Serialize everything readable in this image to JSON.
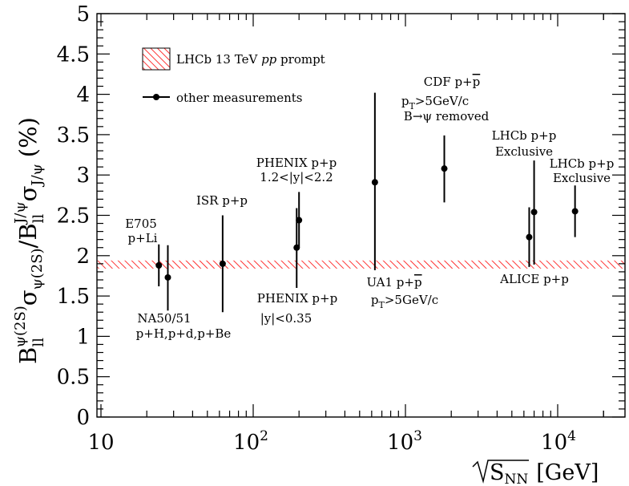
{
  "chart_data": {
    "type": "scatter",
    "title": "",
    "xlabel": "√S_NN [GeV]",
    "ylabel": "B_ll^ψ(2S) σ_ψ(2S) / B_ll^J/ψ σ_J/ψ (%)",
    "xscale": "log",
    "xlim": [
      10,
      27000
    ],
    "ylim": [
      0,
      5
    ],
    "y_ticks": [
      "0",
      "0.5",
      "1",
      "1.5",
      "2",
      "2.5",
      "3",
      "3.5",
      "4",
      "4.5",
      "5"
    ],
    "x_ticks": [
      "10",
      "10^2",
      "10^3",
      "10^4"
    ],
    "grid": false,
    "legend": {
      "placement": "top-left",
      "entries": [
        {
          "label": "LHCb 13 TeV pp prompt",
          "marker": "hatched-band"
        },
        {
          "label": "other measurements",
          "marker": "point-errorbar"
        }
      ]
    },
    "band": {
      "name": "LHCb 13 TeV pp prompt",
      "y_center": 1.89,
      "y_low": 1.84,
      "y_high": 1.94,
      "color": "#ff0000",
      "pattern": "diagonal-hatch"
    },
    "series": [
      {
        "name": "other measurements",
        "color": "#000000",
        "points": [
          {
            "x": 24,
            "y": 1.88,
            "err_low": 0.26,
            "err_high": 0.26
          },
          {
            "x": 27.5,
            "y": 1.73,
            "err_low": 0.41,
            "err_high": 0.4
          },
          {
            "x": 63,
            "y": 1.9,
            "err_low": 0.6,
            "err_high": 0.6
          },
          {
            "x": 193,
            "y": 2.1,
            "err_low": 0.5,
            "err_high": 0.49
          },
          {
            "x": 200,
            "y": 2.44,
            "err_low": 0.34,
            "err_high": 0.35
          },
          {
            "x": 630,
            "y": 2.91,
            "err_low": 1.09,
            "err_high": 1.11
          },
          {
            "x": 1800,
            "y": 3.08,
            "err_low": 0.42,
            "err_high": 0.41
          },
          {
            "x": 6500,
            "y": 2.23,
            "err_low": 0.37,
            "err_high": 0.37
          },
          {
            "x": 7000,
            "y": 2.54,
            "err_low": 0.65,
            "err_high": 0.64
          },
          {
            "x": 13000,
            "y": 2.55,
            "err_low": 0.32,
            "err_high": 0.32
          }
        ]
      }
    ],
    "annotations": [
      {
        "id": "e705",
        "lines": [
          "E705",
          "p+Li"
        ]
      },
      {
        "id": "na50",
        "lines": [
          "NA50/51",
          "p+H,p+d,p+Be"
        ]
      },
      {
        "id": "isr",
        "lines": [
          "ISR p+p"
        ]
      },
      {
        "id": "phenix-fwd",
        "lines": [
          "PHENIX p+p",
          "1.2<|y|<2.2"
        ]
      },
      {
        "id": "phenix-mid",
        "lines": [
          "PHENIX p+p",
          "|y|<0.35"
        ]
      },
      {
        "id": "ua1",
        "lines": [
          "UA1 p+p̅",
          "pT>5GeV/c"
        ]
      },
      {
        "id": "cdf",
        "lines": [
          "CDF p+p̅",
          "pT>5GeV/c",
          "B→ψ removed"
        ]
      },
      {
        "id": "lhcb7",
        "lines": [
          "LHCb p+p",
          "Exclusive"
        ]
      },
      {
        "id": "lhcb13",
        "lines": [
          "LHCb p+p",
          "Exclusive"
        ]
      },
      {
        "id": "alice",
        "lines": [
          "ALICE p+p"
        ]
      }
    ]
  }
}
